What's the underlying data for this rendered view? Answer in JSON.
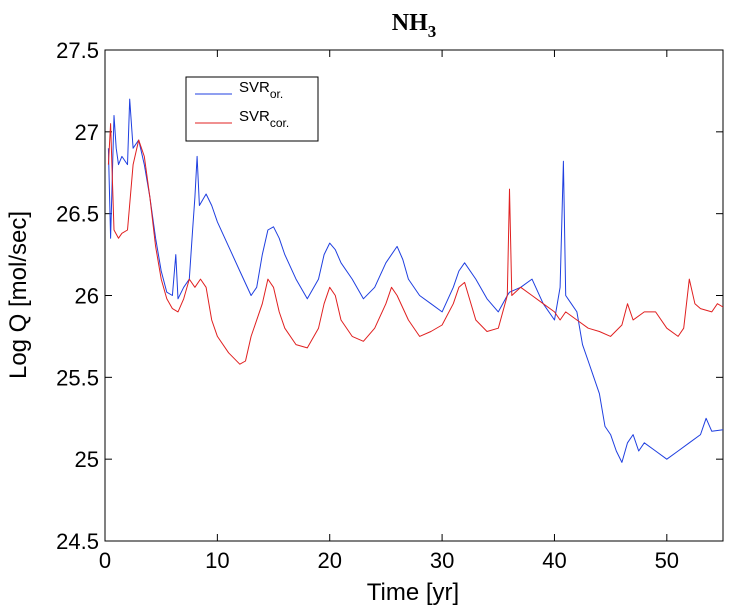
{
  "chart_data": {
    "type": "line",
    "title": "NH",
    "title_subscript": "3",
    "xlabel": "Time [yr]",
    "ylabel": "Log Q [mol/sec]",
    "xlim": [
      0,
      55
    ],
    "ylim": [
      24.5,
      27.5
    ],
    "xticks": [
      0,
      10,
      20,
      30,
      40,
      50
    ],
    "yticks": [
      24.5,
      25,
      25.5,
      26,
      26.5,
      27,
      27.5
    ],
    "xtick_labels": [
      "0",
      "10",
      "20",
      "30",
      "40",
      "50"
    ],
    "ytick_labels": [
      "24.5",
      "25",
      "25.5",
      "26",
      "26.5",
      "27",
      "27.5"
    ],
    "grid": false,
    "legend_position": "top-left",
    "series": [
      {
        "name": "SVR",
        "name_subscript": "or.",
        "color": "#1f3fe0",
        "points": [
          [
            0.3,
            26.9
          ],
          [
            0.5,
            26.35
          ],
          [
            0.8,
            27.1
          ],
          [
            1.0,
            26.9
          ],
          [
            1.2,
            26.8
          ],
          [
            1.5,
            26.85
          ],
          [
            2.0,
            26.8
          ],
          [
            2.2,
            27.2
          ],
          [
            2.5,
            26.9
          ],
          [
            3.0,
            26.95
          ],
          [
            3.5,
            26.8
          ],
          [
            4.0,
            26.6
          ],
          [
            4.5,
            26.35
          ],
          [
            5.0,
            26.15
          ],
          [
            5.5,
            26.02
          ],
          [
            6.0,
            26.0
          ],
          [
            6.3,
            26.25
          ],
          [
            6.5,
            25.98
          ],
          [
            7.0,
            26.05
          ],
          [
            7.5,
            26.1
          ],
          [
            7.8,
            26.4
          ],
          [
            8.0,
            26.6
          ],
          [
            8.2,
            26.85
          ],
          [
            8.4,
            26.55
          ],
          [
            9.0,
            26.62
          ],
          [
            9.5,
            26.55
          ],
          [
            10.0,
            26.45
          ],
          [
            11.0,
            26.3
          ],
          [
            12.0,
            26.15
          ],
          [
            13.0,
            26.0
          ],
          [
            13.5,
            26.05
          ],
          [
            14.0,
            26.25
          ],
          [
            14.5,
            26.4
          ],
          [
            15.0,
            26.42
          ],
          [
            15.5,
            26.35
          ],
          [
            16.0,
            26.25
          ],
          [
            17.0,
            26.1
          ],
          [
            18.0,
            25.98
          ],
          [
            19.0,
            26.1
          ],
          [
            19.5,
            26.25
          ],
          [
            20.0,
            26.32
          ],
          [
            20.5,
            26.28
          ],
          [
            21.0,
            26.2
          ],
          [
            22.0,
            26.1
          ],
          [
            23.0,
            25.98
          ],
          [
            24.0,
            26.05
          ],
          [
            25.0,
            26.2
          ],
          [
            26.0,
            26.3
          ],
          [
            26.5,
            26.22
          ],
          [
            27.0,
            26.1
          ],
          [
            28.0,
            26.0
          ],
          [
            29.0,
            25.95
          ],
          [
            30.0,
            25.9
          ],
          [
            31.0,
            26.05
          ],
          [
            31.5,
            26.15
          ],
          [
            32.0,
            26.2
          ],
          [
            33.0,
            26.1
          ],
          [
            34.0,
            25.98
          ],
          [
            35.0,
            25.9
          ],
          [
            35.8,
            26.0
          ],
          [
            36.0,
            26.02
          ],
          [
            37.0,
            26.05
          ],
          [
            38.0,
            26.1
          ],
          [
            39.0,
            25.95
          ],
          [
            40.0,
            25.85
          ],
          [
            40.5,
            26.05
          ],
          [
            40.8,
            26.82
          ],
          [
            41.0,
            26.0
          ],
          [
            41.5,
            25.95
          ],
          [
            42.0,
            25.9
          ],
          [
            42.5,
            25.7
          ],
          [
            43.0,
            25.6
          ],
          [
            43.5,
            25.5
          ],
          [
            44.0,
            25.4
          ],
          [
            44.5,
            25.2
          ],
          [
            45.0,
            25.15
          ],
          [
            45.5,
            25.05
          ],
          [
            46.0,
            24.98
          ],
          [
            46.5,
            25.1
          ],
          [
            47.0,
            25.15
          ],
          [
            47.5,
            25.05
          ],
          [
            48.0,
            25.1
          ],
          [
            49.0,
            25.05
          ],
          [
            50.0,
            25.0
          ],
          [
            51.0,
            25.05
          ],
          [
            52.0,
            25.1
          ],
          [
            53.0,
            25.15
          ],
          [
            53.5,
            25.25
          ],
          [
            54.0,
            25.17
          ],
          [
            55.0,
            25.18
          ]
        ]
      },
      {
        "name": "SVR",
        "name_subscript": "cor.",
        "color": "#e02020",
        "points": [
          [
            0.3,
            26.8
          ],
          [
            0.5,
            27.05
          ],
          [
            0.8,
            26.4
          ],
          [
            1.2,
            26.35
          ],
          [
            1.5,
            26.38
          ],
          [
            2.0,
            26.4
          ],
          [
            2.5,
            26.8
          ],
          [
            3.0,
            26.95
          ],
          [
            3.5,
            26.85
          ],
          [
            4.0,
            26.6
          ],
          [
            4.5,
            26.3
          ],
          [
            5.0,
            26.1
          ],
          [
            5.5,
            25.98
          ],
          [
            6.0,
            25.92
          ],
          [
            6.5,
            25.9
          ],
          [
            7.0,
            25.98
          ],
          [
            7.5,
            26.1
          ],
          [
            8.0,
            26.05
          ],
          [
            8.5,
            26.1
          ],
          [
            9.0,
            26.05
          ],
          [
            9.5,
            25.85
          ],
          [
            10.0,
            25.75
          ],
          [
            11.0,
            25.65
          ],
          [
            12.0,
            25.58
          ],
          [
            12.5,
            25.6
          ],
          [
            13.0,
            25.75
          ],
          [
            14.0,
            25.95
          ],
          [
            14.5,
            26.1
          ],
          [
            15.0,
            26.05
          ],
          [
            15.5,
            25.9
          ],
          [
            16.0,
            25.8
          ],
          [
            17.0,
            25.7
          ],
          [
            18.0,
            25.68
          ],
          [
            19.0,
            25.8
          ],
          [
            19.5,
            25.95
          ],
          [
            20.0,
            26.05
          ],
          [
            20.5,
            26.0
          ],
          [
            21.0,
            25.85
          ],
          [
            22.0,
            25.75
          ],
          [
            23.0,
            25.72
          ],
          [
            24.0,
            25.8
          ],
          [
            25.0,
            25.95
          ],
          [
            25.5,
            26.05
          ],
          [
            26.0,
            26.0
          ],
          [
            27.0,
            25.85
          ],
          [
            28.0,
            25.75
          ],
          [
            29.0,
            25.78
          ],
          [
            30.0,
            25.82
          ],
          [
            31.0,
            25.95
          ],
          [
            31.5,
            26.05
          ],
          [
            32.0,
            26.08
          ],
          [
            33.0,
            25.85
          ],
          [
            34.0,
            25.78
          ],
          [
            35.0,
            25.8
          ],
          [
            35.8,
            26.0
          ],
          [
            36.0,
            26.65
          ],
          [
            36.2,
            26.0
          ],
          [
            37.0,
            26.05
          ],
          [
            38.0,
            26.0
          ],
          [
            39.0,
            25.95
          ],
          [
            40.0,
            25.9
          ],
          [
            40.5,
            25.85
          ],
          [
            41.0,
            25.9
          ],
          [
            42.0,
            25.85
          ],
          [
            43.0,
            25.8
          ],
          [
            44.0,
            25.78
          ],
          [
            45.0,
            25.75
          ],
          [
            46.0,
            25.82
          ],
          [
            46.5,
            25.95
          ],
          [
            47.0,
            25.85
          ],
          [
            48.0,
            25.9
          ],
          [
            49.0,
            25.9
          ],
          [
            50.0,
            25.8
          ],
          [
            51.0,
            25.75
          ],
          [
            51.5,
            25.8
          ],
          [
            52.0,
            26.1
          ],
          [
            52.5,
            25.95
          ],
          [
            53.0,
            25.92
          ],
          [
            54.0,
            25.9
          ],
          [
            54.5,
            25.95
          ],
          [
            55.0,
            25.93
          ]
        ]
      }
    ]
  }
}
